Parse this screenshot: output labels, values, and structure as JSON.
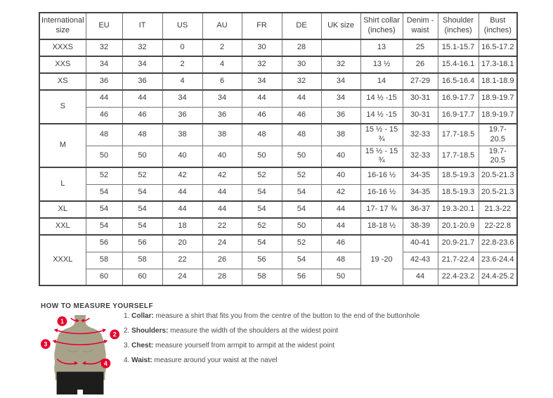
{
  "table": {
    "headers": [
      "International size",
      "EU",
      "IT",
      "US",
      "AU",
      "FR",
      "DE",
      "UK size",
      "Shirt collar (inches)",
      "Denim - waist",
      "Shoulder (inches)",
      "Bust (inches)"
    ],
    "rows": [
      {
        "group_start": true,
        "label": "XXXS",
        "label_span": 1,
        "cells": [
          "32",
          "32",
          "0",
          "2",
          "30",
          "28",
          ""
        ],
        "collar": {
          "text": "13",
          "span": 1
        },
        "rest": [
          "25",
          "15.1-15.7",
          "16.5-17.2"
        ]
      },
      {
        "group_start": true,
        "label": "XXS",
        "label_span": 1,
        "cells": [
          "34",
          "34",
          "2",
          "4",
          "32",
          "30",
          "32"
        ],
        "collar": {
          "text": "13 ½",
          "span": 1
        },
        "rest": [
          "26",
          "15.4-16.1",
          "17.3-18.1"
        ]
      },
      {
        "group_start": true,
        "label": "XS",
        "label_span": 1,
        "cells": [
          "36",
          "36",
          "4",
          "6",
          "34",
          "32",
          "34"
        ],
        "collar": {
          "text": "14",
          "span": 1
        },
        "rest": [
          "27-29",
          "16.5-16.4",
          "18.1-18.9"
        ]
      },
      {
        "group_start": true,
        "label": "S",
        "label_span": 2,
        "cells": [
          "44",
          "44",
          "34",
          "34",
          "44",
          "44",
          "34"
        ],
        "collar": {
          "text": "14 ½ -15",
          "span": 1
        },
        "rest": [
          "30-31",
          "16.9-17.7",
          "18.9-19.7"
        ]
      },
      {
        "group_start": false,
        "label": null,
        "label_span": 1,
        "cells": [
          "46",
          "46",
          "36",
          "36",
          "46",
          "46",
          "36"
        ],
        "collar": {
          "text": "14 ½ -15",
          "span": 1
        },
        "rest": [
          "30-31",
          "16.9-17.7",
          "18.9-19.7"
        ]
      },
      {
        "group_start": true,
        "label": "M",
        "label_span": 2,
        "cells": [
          "48",
          "48",
          "38",
          "38",
          "48",
          "48",
          "38"
        ],
        "collar": {
          "text": "15 ½ - 15 ¾",
          "span": 1
        },
        "rest": [
          "32-33",
          "17.7-18.5",
          "19.7- 20.5"
        ]
      },
      {
        "group_start": false,
        "label": null,
        "label_span": 1,
        "cells": [
          "50",
          "50",
          "40",
          "40",
          "50",
          "50",
          "40"
        ],
        "collar": {
          "text": "15 ½ - 15 ¾",
          "span": 1
        },
        "rest": [
          "32-33",
          "17.7-18.5",
          "19.7- 20.5"
        ]
      },
      {
        "group_start": true,
        "label": "L",
        "label_span": 2,
        "cells": [
          "52",
          "52",
          "42",
          "42",
          "52",
          "52",
          "40"
        ],
        "collar": {
          "text": "16-16 ½",
          "span": 1
        },
        "rest": [
          "34-35",
          "18.5-19.3",
          "20.5-21.3"
        ]
      },
      {
        "group_start": false,
        "label": null,
        "label_span": 1,
        "cells": [
          "54",
          "54",
          "44",
          "44",
          "54",
          "54",
          "42"
        ],
        "collar": {
          "text": "16-16 ½",
          "span": 1
        },
        "rest": [
          "34-35",
          "18.5-19.3",
          "20.5-21.3"
        ]
      },
      {
        "group_start": true,
        "label": "XL",
        "label_span": 1,
        "cells": [
          "54",
          "54",
          "44",
          "44",
          "54",
          "54",
          "44"
        ],
        "collar": {
          "text": "17- 17 ¾",
          "span": 1
        },
        "rest": [
          "36-37",
          "19.3-20.1",
          "21.3-22"
        ]
      },
      {
        "group_start": true,
        "label": "XXL",
        "label_span": 1,
        "cells": [
          "54",
          "54",
          "18",
          "22",
          "52",
          "50",
          "44"
        ],
        "collar": {
          "text": "18-18 ½",
          "span": 1
        },
        "rest": [
          "38-39",
          "20.1-20.9",
          "22-22.8"
        ]
      },
      {
        "group_start": true,
        "label": "XXXL",
        "label_span": 3,
        "cells": [
          "56",
          "56",
          "20",
          "24",
          "54",
          "52",
          "46"
        ],
        "collar": {
          "text": "19 -20",
          "span": 3
        },
        "rest": [
          "40-41",
          "20.9-21.7",
          "22.8-23.6"
        ]
      },
      {
        "group_start": false,
        "label": null,
        "label_span": 1,
        "cells": [
          "58",
          "58",
          "22",
          "26",
          "56",
          "54",
          "48"
        ],
        "collar": null,
        "rest": [
          "42-43",
          "21.7-22.4",
          "23.6-24.4"
        ]
      },
      {
        "group_start": false,
        "label": null,
        "label_span": 1,
        "cells": [
          "60",
          "60",
          "24",
          "28",
          "58",
          "56",
          "50"
        ],
        "collar": null,
        "rest": [
          "44",
          "22.4-23.2",
          "24.4-25.2"
        ]
      }
    ]
  },
  "measure": {
    "heading": "HOW TO MEASURE YOURSELF",
    "items": [
      {
        "num": "1. ",
        "term": "Collar:",
        "text": " measure a shirt that fits you from the centre of the button to the end of the buttonhole"
      },
      {
        "num": "2. ",
        "term": "Shoulders:",
        "text": " measure the width of the shoulders at the widest point"
      },
      {
        "num": "3. ",
        "term": "Chest:",
        "text": " measure yourself from armpit to armpit at the widest point"
      },
      {
        "num": "4. ",
        "term": "Waist:",
        "text": " measure around your waist at the navel"
      }
    ],
    "figure_badges": [
      "1",
      "2",
      "3",
      "4"
    ],
    "colors": {
      "accent_red": "#e4002b",
      "mannequin_body": "#a9a28b",
      "mannequin_shorts": "#1d1d1b"
    }
  }
}
